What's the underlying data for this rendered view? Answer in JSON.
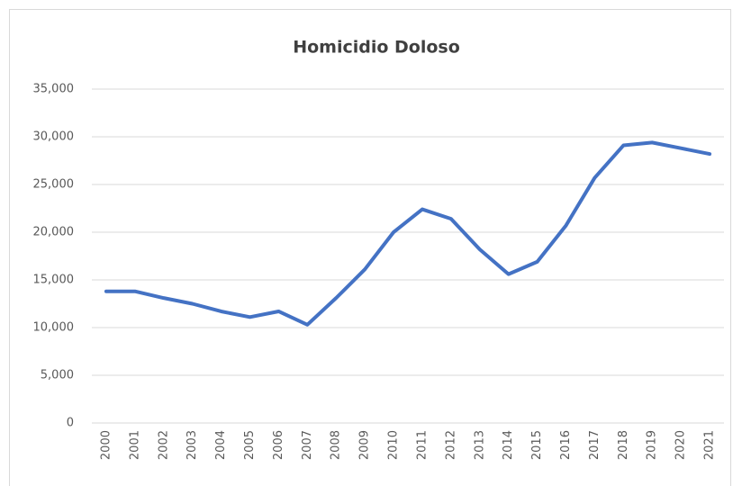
{
  "chart_data": {
    "type": "line",
    "title": "Homicidio Doloso",
    "categories": [
      "2000",
      "2001",
      "2002",
      "2003",
      "2004",
      "2005",
      "2006",
      "2007",
      "2008",
      "2009",
      "2010",
      "2011",
      "2012",
      "2013",
      "2014",
      "2015",
      "2016",
      "2017",
      "2018",
      "2019",
      "2020",
      "2021"
    ],
    "series": [
      {
        "color": "#4472c4",
        "values": [
          13800,
          13800,
          13100,
          12500,
          11700,
          11100,
          11700,
          10300,
          13100,
          16100,
          20000,
          22400,
          21400,
          18200,
          15600,
          16900,
          20700,
          25700,
          29100,
          29400,
          28800,
          28200
        ]
      }
    ],
    "ylim": [
      0,
      35000
    ],
    "yticks": [
      0,
      {
        "value": 5000,
        "label": "5,000"
      },
      {
        "value": 10000,
        "label": "10,000"
      },
      {
        "value": 15000,
        "label": "15,000"
      },
      {
        "value": 20000,
        "label": "20,000"
      },
      {
        "value": 25000,
        "label": "25,000"
      },
      {
        "value": 30000,
        "label": "30,000"
      },
      {
        "value": 35000,
        "label": "35,000"
      }
    ],
    "grid": true
  }
}
